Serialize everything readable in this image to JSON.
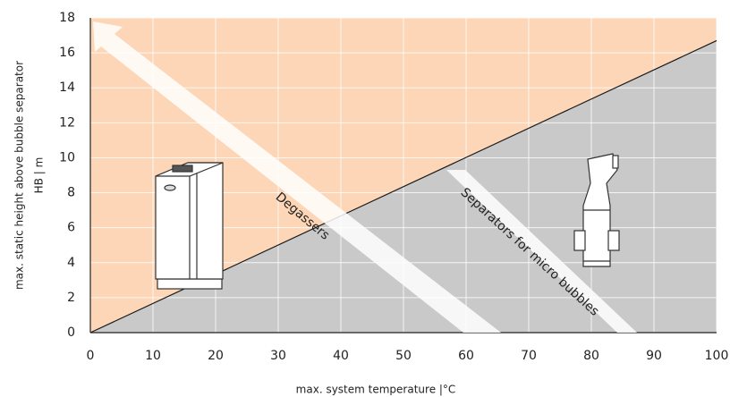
{
  "chart_data": {
    "type": "area",
    "xlabel": "max. system temperature |°C",
    "ylabel": [
      "max. static height above bubble separator",
      "HB | m"
    ],
    "x": [
      0,
      100
    ],
    "values": [
      0,
      16.7
    ],
    "color": "#1a1a1a",
    "fill_below": "#c9c9c9",
    "fill_above": "#fcd6b6",
    "xlim": [
      0,
      100
    ],
    "xticks": [
      0,
      10,
      20,
      30,
      40,
      50,
      60,
      70,
      80,
      90,
      100
    ],
    "ylim": [
      0,
      18
    ],
    "yticks": [
      0,
      2,
      4,
      6,
      8,
      10,
      12,
      14,
      16,
      18
    ],
    "grid": true,
    "annotations": [
      "Degassers",
      "Separators for micro bubbles"
    ]
  }
}
